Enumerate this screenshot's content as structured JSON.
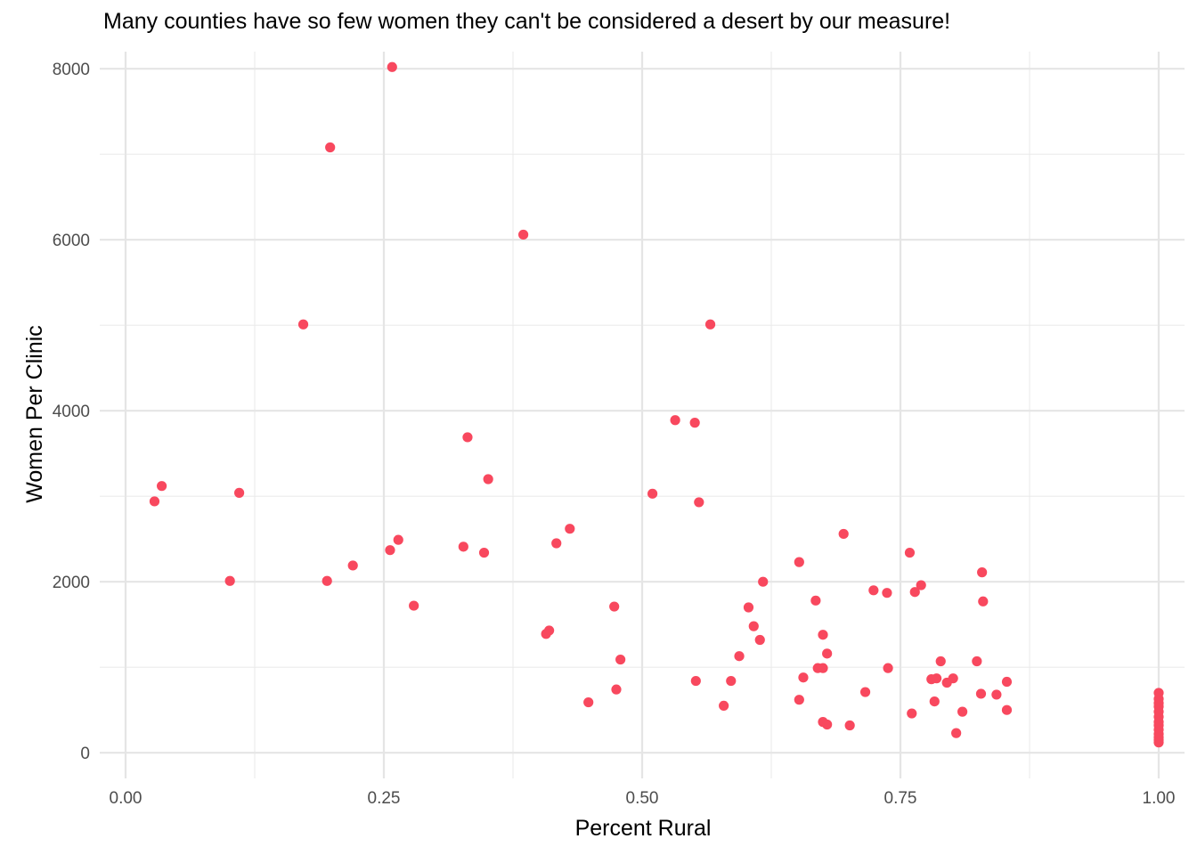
{
  "chart_data": {
    "type": "scatter",
    "title": "Many counties have so few women they can't be considered a desert by our measure!",
    "xlabel": "Percent Rural",
    "ylabel": "Women Per Clinic",
    "xlim": [
      -0.025,
      1.025
    ],
    "ylim": [
      -300,
      8200
    ],
    "xticks": [
      "0.00",
      "0.25",
      "0.50",
      "0.75",
      "1.00"
    ],
    "yticks": [
      "0",
      "2000",
      "4000",
      "6000",
      "8000"
    ],
    "grid": true,
    "point_color": "#f8485e",
    "series": [
      {
        "x": [
          0.258,
          0.198,
          0.385,
          0.172,
          0.566,
          0.532,
          0.551,
          0.331,
          0.351,
          0.035,
          0.11,
          0.028,
          0.51,
          0.555,
          0.43,
          0.695,
          0.264,
          0.417,
          0.256,
          0.327,
          0.347,
          0.759,
          0.22,
          0.829,
          0.101,
          0.195,
          0.617,
          0.652,
          0.77,
          0.724,
          0.737,
          0.764,
          0.668,
          0.83,
          0.279,
          0.473,
          0.603,
          0.41,
          0.407,
          0.608,
          0.675,
          0.614,
          0.679,
          0.479,
          0.594,
          0.824,
          0.789,
          0.67,
          0.675,
          0.738,
          0.785,
          0.801,
          0.78,
          0.656,
          0.552,
          0.586,
          0.853,
          0.795,
          0.475,
          0.716,
          0.843,
          0.828,
          0.652,
          0.448,
          0.783,
          0.579,
          0.853,
          0.81,
          0.761,
          0.675,
          0.679,
          0.701,
          0.804,
          1.0,
          1.0,
          1.0,
          1.0,
          1.0,
          1.0,
          1.0,
          1.0,
          1.0,
          1.0,
          1.0,
          1.0,
          1.0
        ],
        "y": [
          8020,
          7080,
          6060,
          5010,
          5010,
          3890,
          3860,
          3690,
          3200,
          3120,
          3040,
          2940,
          3030,
          2930,
          2620,
          2560,
          2490,
          2450,
          2370,
          2410,
          2340,
          2340,
          2190,
          2110,
          2010,
          2010,
          2000,
          2230,
          1960,
          1900,
          1870,
          1880,
          1780,
          1770,
          1720,
          1710,
          1700,
          1430,
          1390,
          1480,
          1380,
          1320,
          1160,
          1090,
          1130,
          1070,
          1070,
          990,
          990,
          990,
          870,
          870,
          860,
          880,
          840,
          840,
          830,
          820,
          740,
          710,
          680,
          690,
          620,
          590,
          600,
          550,
          500,
          480,
          460,
          360,
          330,
          320,
          230,
          700,
          630,
          580,
          540,
          480,
          420,
          360,
          320,
          270,
          220,
          180,
          150,
          120
        ]
      }
    ]
  }
}
